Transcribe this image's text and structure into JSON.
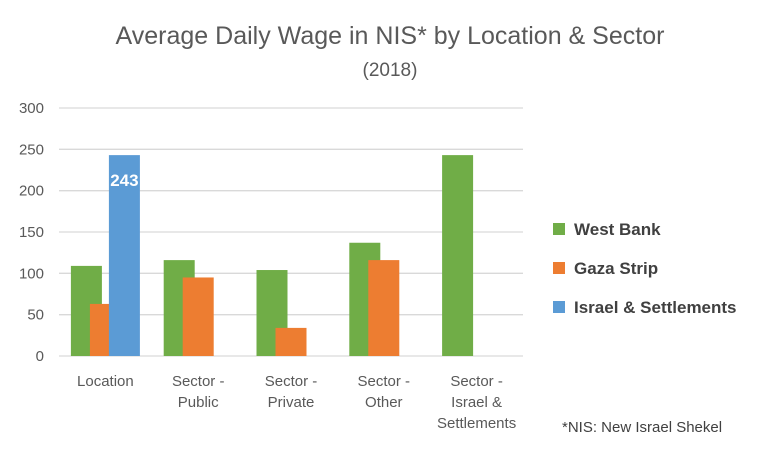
{
  "chart_data": {
    "type": "bar",
    "title": "Average Daily Wage in NIS* by Location & Sector",
    "subtitle": "(2018)",
    "xlabel": "",
    "ylabel": "",
    "ylim": [
      0,
      300
    ],
    "yticks": [
      0,
      50,
      100,
      150,
      200,
      250,
      300
    ],
    "grid": true,
    "legend_position": "right",
    "categories": [
      [
        "Location"
      ],
      [
        "Sector -",
        "Public"
      ],
      [
        "Sector -",
        "Private"
      ],
      [
        "Sector -",
        "Other"
      ],
      [
        "Sector -",
        "Israel &",
        "Settlements"
      ]
    ],
    "series": [
      {
        "name": "West Bank",
        "color": "#70AD47",
        "values": [
          109,
          116,
          104,
          137,
          243
        ]
      },
      {
        "name": "Gaza Strip",
        "color": "#ED7D31",
        "values": [
          63,
          95,
          34,
          116,
          null
        ]
      },
      {
        "name": "Israel & Settlements",
        "color": "#5B9BD5",
        "values": [
          243,
          null,
          null,
          null,
          null
        ]
      }
    ],
    "data_labels": [
      {
        "series": 2,
        "category": 0,
        "text": "243"
      }
    ],
    "footnote": "*NIS: New Israel Shekel"
  }
}
